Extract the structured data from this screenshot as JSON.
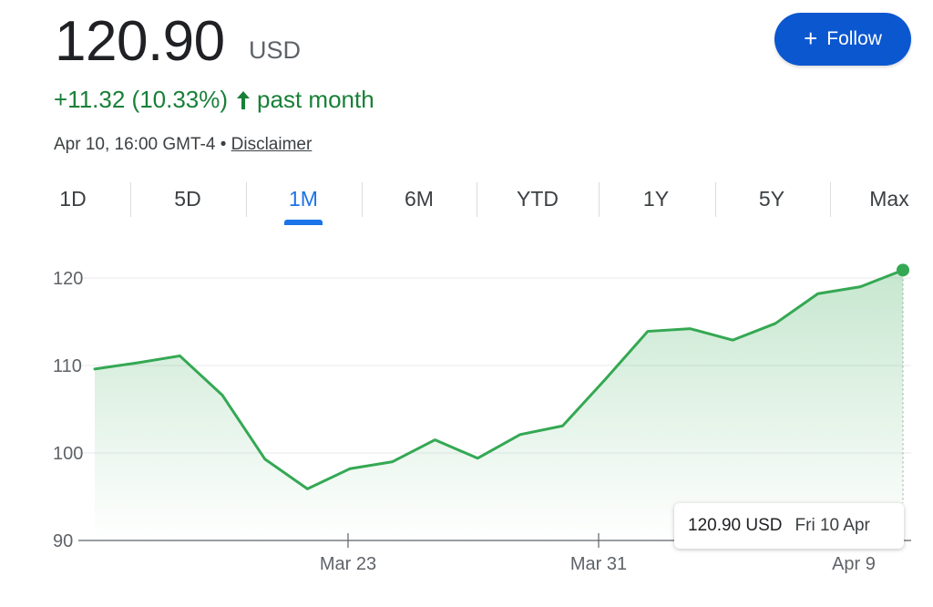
{
  "quote": {
    "price": "120.90",
    "currency": "USD",
    "change": "+11.32 (10.33%)",
    "period": "past month",
    "timestamp": "Apr 10, 16:00 GMT-4",
    "separator": "•",
    "disclaimer": "Disclaimer"
  },
  "follow_button": {
    "icon": "plus-icon",
    "label": "Follow"
  },
  "tabs": [
    {
      "label": "1D"
    },
    {
      "label": "5D"
    },
    {
      "label": "1M",
      "active": true
    },
    {
      "label": "6M"
    },
    {
      "label": "YTD"
    },
    {
      "label": "1Y"
    },
    {
      "label": "5Y"
    },
    {
      "label": "Max"
    }
  ],
  "tooltip": {
    "value": "120.90 USD",
    "date": "Fri 10 Apr"
  },
  "colors": {
    "up": "#188038",
    "line": "#34a853",
    "accent": "#1a73e8",
    "button": "#0b57d0"
  },
  "chart_data": {
    "type": "line",
    "yticks": [
      90,
      100,
      110,
      120
    ],
    "ylim": [
      90,
      120
    ],
    "xticks": [
      {
        "label": "Mar 23",
        "index": 6
      },
      {
        "label": "Mar 31",
        "index": 12
      },
      {
        "label": "Apr 9",
        "index": 18
      }
    ],
    "values": [
      109.6,
      110.3,
      111.1,
      106.6,
      99.3,
      95.9,
      98.2,
      99.0,
      101.5,
      99.4,
      102.1,
      103.1,
      108.4,
      113.9,
      114.2,
      112.9,
      114.8,
      118.2,
      119.0,
      120.9
    ],
    "grid": true
  }
}
